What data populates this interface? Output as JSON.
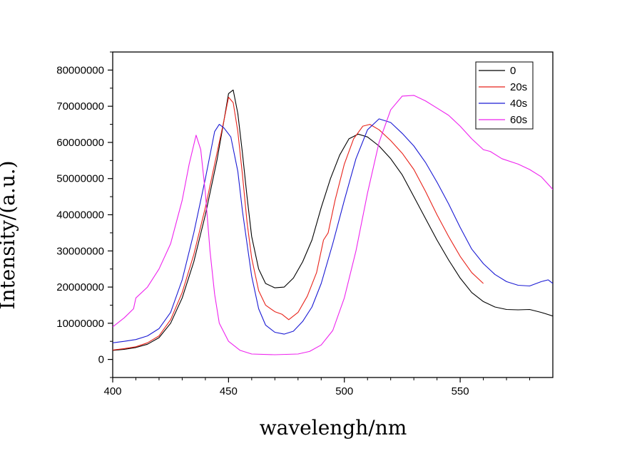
{
  "chart_data": {
    "type": "line",
    "xlabel": "wavelengh/nm",
    "ylabel": "Intensity/(a.u.)",
    "xlim": [
      400,
      590
    ],
    "ylim": [
      -5000000,
      85000000
    ],
    "xticks": [
      400,
      450,
      500,
      550
    ],
    "yticks": [
      0,
      10000000,
      20000000,
      30000000,
      40000000,
      50000000,
      60000000,
      70000000,
      80000000
    ],
    "grid": false,
    "legend_position": "top-right",
    "series": [
      {
        "name": "0",
        "color": "#000000",
        "points": [
          [
            400,
            2500000
          ],
          [
            405,
            2800000
          ],
          [
            410,
            3300000
          ],
          [
            415,
            4200000
          ],
          [
            420,
            6000000
          ],
          [
            425,
            10000000
          ],
          [
            430,
            17000000
          ],
          [
            435,
            27000000
          ],
          [
            440,
            40000000
          ],
          [
            445,
            55000000
          ],
          [
            448,
            66000000
          ],
          [
            450,
            73500000
          ],
          [
            452,
            74500000
          ],
          [
            454,
            68000000
          ],
          [
            456,
            57000000
          ],
          [
            458,
            45000000
          ],
          [
            460,
            34000000
          ],
          [
            463,
            25000000
          ],
          [
            466,
            21000000
          ],
          [
            470,
            19800000
          ],
          [
            474,
            20000000
          ],
          [
            478,
            22500000
          ],
          [
            482,
            27000000
          ],
          [
            486,
            33000000
          ],
          [
            490,
            42000000
          ],
          [
            494,
            50000000
          ],
          [
            498,
            56500000
          ],
          [
            502,
            61000000
          ],
          [
            506,
            62300000
          ],
          [
            510,
            61500000
          ],
          [
            515,
            59000000
          ],
          [
            520,
            55500000
          ],
          [
            525,
            51000000
          ],
          [
            530,
            45000000
          ],
          [
            535,
            39000000
          ],
          [
            540,
            33000000
          ],
          [
            545,
            27500000
          ],
          [
            550,
            22500000
          ],
          [
            555,
            18500000
          ],
          [
            560,
            16000000
          ],
          [
            565,
            14500000
          ],
          [
            570,
            13800000
          ],
          [
            575,
            13700000
          ],
          [
            580,
            13800000
          ],
          [
            585,
            13000000
          ],
          [
            590,
            12000000
          ]
        ]
      },
      {
        "name": "20s",
        "color": "#e8231a",
        "points": [
          [
            400,
            2600000
          ],
          [
            405,
            3000000
          ],
          [
            410,
            3500000
          ],
          [
            415,
            4600000
          ],
          [
            420,
            6500000
          ],
          [
            425,
            11000000
          ],
          [
            430,
            18500000
          ],
          [
            435,
            29000000
          ],
          [
            440,
            42000000
          ],
          [
            445,
            57000000
          ],
          [
            448,
            66000000
          ],
          [
            450,
            72500000
          ],
          [
            452,
            71000000
          ],
          [
            454,
            63000000
          ],
          [
            456,
            51000000
          ],
          [
            458,
            38000000
          ],
          [
            460,
            28000000
          ],
          [
            463,
            19000000
          ],
          [
            466,
            15000000
          ],
          [
            470,
            13200000
          ],
          [
            473,
            12500000
          ],
          [
            476,
            11000000
          ],
          [
            480,
            13000000
          ],
          [
            484,
            17500000
          ],
          [
            488,
            24000000
          ],
          [
            491,
            33000000
          ],
          [
            493,
            35000000
          ],
          [
            496,
            44000000
          ],
          [
            500,
            54000000
          ],
          [
            504,
            61000000
          ],
          [
            508,
            64500000
          ],
          [
            511,
            65000000
          ],
          [
            515,
            63500000
          ],
          [
            520,
            60500000
          ],
          [
            525,
            57000000
          ],
          [
            530,
            52500000
          ],
          [
            535,
            46500000
          ],
          [
            540,
            40000000
          ],
          [
            545,
            34000000
          ],
          [
            550,
            28500000
          ],
          [
            555,
            24000000
          ],
          [
            560,
            21000000
          ]
        ]
      },
      {
        "name": "40s",
        "color": "#1a1ad4",
        "points": [
          [
            400,
            4600000
          ],
          [
            405,
            5000000
          ],
          [
            410,
            5500000
          ],
          [
            415,
            6500000
          ],
          [
            420,
            8500000
          ],
          [
            425,
            13000000
          ],
          [
            430,
            22000000
          ],
          [
            435,
            35000000
          ],
          [
            440,
            50000000
          ],
          [
            444,
            63000000
          ],
          [
            446,
            65000000
          ],
          [
            448,
            64000000
          ],
          [
            451,
            61500000
          ],
          [
            454,
            52000000
          ],
          [
            456,
            41000000
          ],
          [
            458,
            32000000
          ],
          [
            460,
            23000000
          ],
          [
            463,
            14000000
          ],
          [
            466,
            9500000
          ],
          [
            470,
            7500000
          ],
          [
            474,
            7000000
          ],
          [
            478,
            7800000
          ],
          [
            482,
            10500000
          ],
          [
            486,
            14500000
          ],
          [
            490,
            21000000
          ],
          [
            495,
            32000000
          ],
          [
            500,
            44000000
          ],
          [
            505,
            55500000
          ],
          [
            510,
            63500000
          ],
          [
            515,
            66500000
          ],
          [
            520,
            65500000
          ],
          [
            525,
            62500000
          ],
          [
            530,
            59000000
          ],
          [
            535,
            54500000
          ],
          [
            540,
            49000000
          ],
          [
            545,
            43000000
          ],
          [
            550,
            36500000
          ],
          [
            555,
            30500000
          ],
          [
            560,
            26500000
          ],
          [
            565,
            23500000
          ],
          [
            570,
            21500000
          ],
          [
            575,
            20500000
          ],
          [
            580,
            20300000
          ],
          [
            585,
            21500000
          ],
          [
            588,
            22000000
          ],
          [
            590,
            21000000
          ]
        ]
      },
      {
        "name": "60s",
        "color": "#ee22ee",
        "points": [
          [
            400,
            9000000
          ],
          [
            405,
            11500000
          ],
          [
            409,
            14000000
          ],
          [
            410,
            17000000
          ],
          [
            415,
            20000000
          ],
          [
            420,
            25000000
          ],
          [
            425,
            32000000
          ],
          [
            430,
            44000000
          ],
          [
            433,
            54000000
          ],
          [
            436,
            62000000
          ],
          [
            438,
            58000000
          ],
          [
            440,
            46000000
          ],
          [
            442,
            30000000
          ],
          [
            444,
            18000000
          ],
          [
            446,
            10000000
          ],
          [
            450,
            5000000
          ],
          [
            455,
            2500000
          ],
          [
            460,
            1500000
          ],
          [
            470,
            1300000
          ],
          [
            480,
            1500000
          ],
          [
            485,
            2200000
          ],
          [
            490,
            4000000
          ],
          [
            495,
            8000000
          ],
          [
            500,
            17000000
          ],
          [
            505,
            30000000
          ],
          [
            510,
            46000000
          ],
          [
            515,
            60000000
          ],
          [
            520,
            69000000
          ],
          [
            525,
            72800000
          ],
          [
            530,
            73000000
          ],
          [
            535,
            71500000
          ],
          [
            540,
            69500000
          ],
          [
            545,
            67500000
          ],
          [
            550,
            64500000
          ],
          [
            555,
            61000000
          ],
          [
            560,
            58000000
          ],
          [
            563,
            57500000
          ],
          [
            568,
            55500000
          ],
          [
            575,
            54000000
          ],
          [
            580,
            52500000
          ],
          [
            585,
            50500000
          ],
          [
            590,
            47000000
          ]
        ]
      }
    ]
  }
}
